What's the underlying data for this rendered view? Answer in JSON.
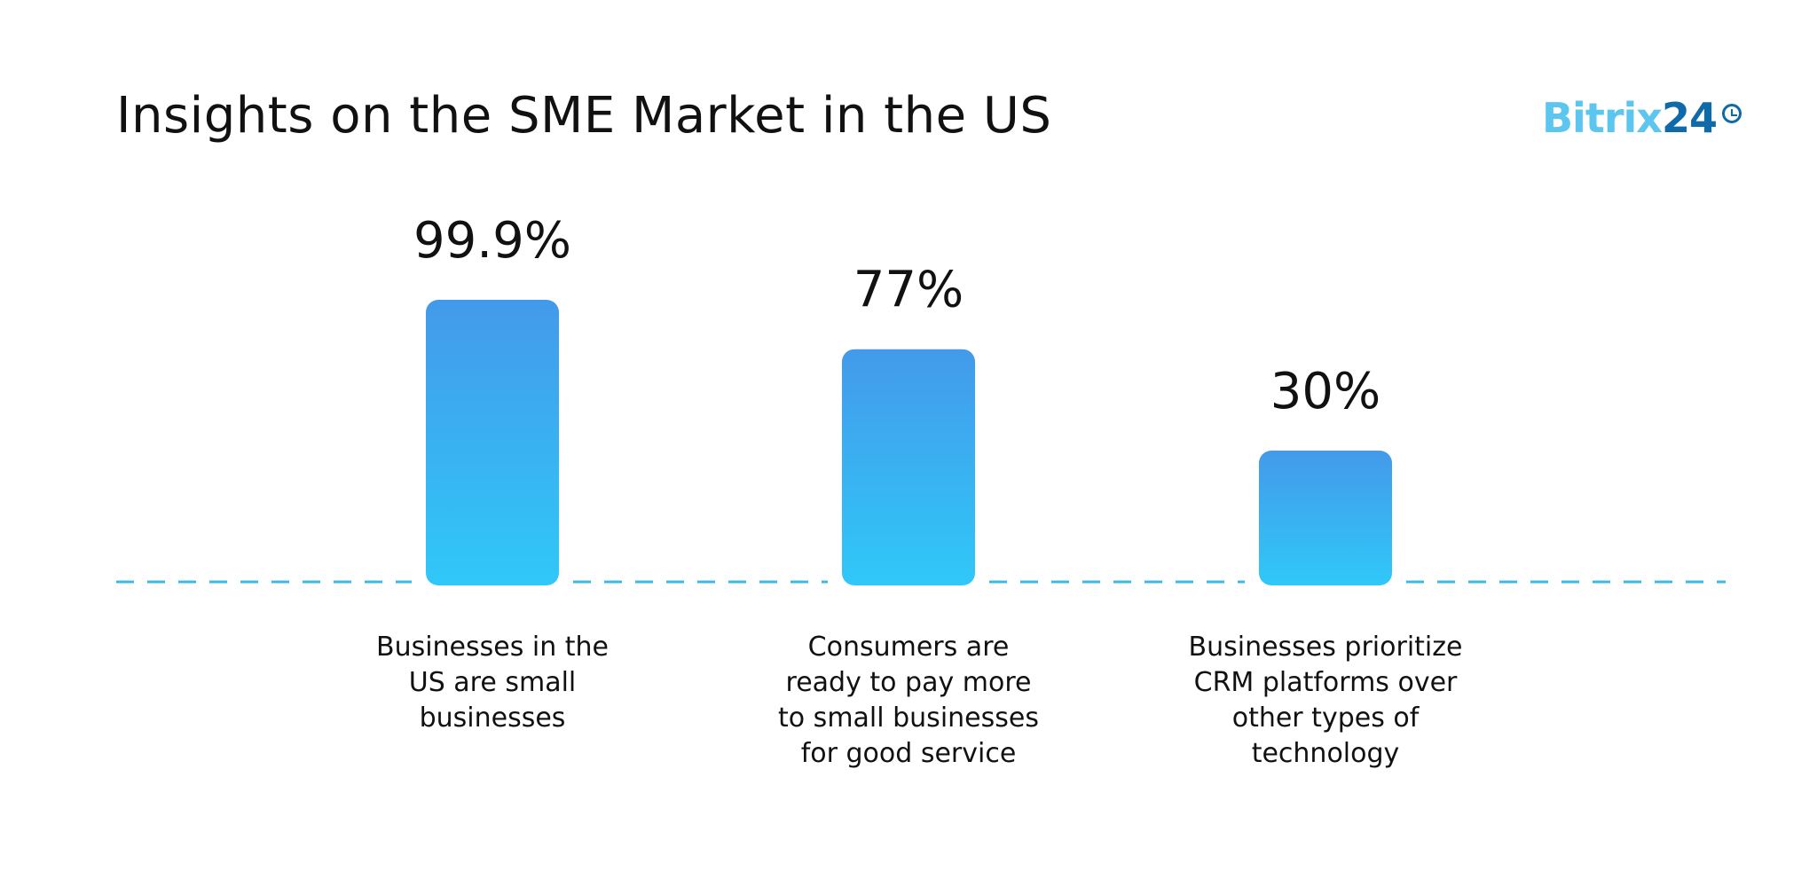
{
  "title": "Insights on the SME Market in the US",
  "logo": {
    "text_light": "Bitrix",
    "text_dark": "24",
    "icon": "clock-icon"
  },
  "colors": {
    "bar_top": "#439aea",
    "bar_bottom": "#30c8f8",
    "baseline": "#3db9e2",
    "logo_light": "#5cc6ee",
    "logo_dark": "#0e6aa8"
  },
  "chart_data": {
    "type": "bar",
    "title": "Insights on the SME Market in the US",
    "categories": [
      "Businesses in the US are small businesses",
      "Consumers are ready to pay more to small businesses for good service",
      "Businesses prioritize CRM platforms over other types of technology"
    ],
    "values": [
      99.9,
      77,
      30
    ],
    "data_labels": [
      "99.9%",
      "77%",
      "30%"
    ],
    "category_lines": [
      [
        "Businesses in the",
        "US are small",
        "businesses"
      ],
      [
        "Consumers are",
        "ready to pay more",
        "to small businesses",
        "for good service"
      ],
      [
        "Businesses prioritize",
        "CRM platforms over",
        "other types of",
        "technology"
      ]
    ],
    "unit": "%",
    "grid": false,
    "legend": "none",
    "baseline": "dashed"
  }
}
